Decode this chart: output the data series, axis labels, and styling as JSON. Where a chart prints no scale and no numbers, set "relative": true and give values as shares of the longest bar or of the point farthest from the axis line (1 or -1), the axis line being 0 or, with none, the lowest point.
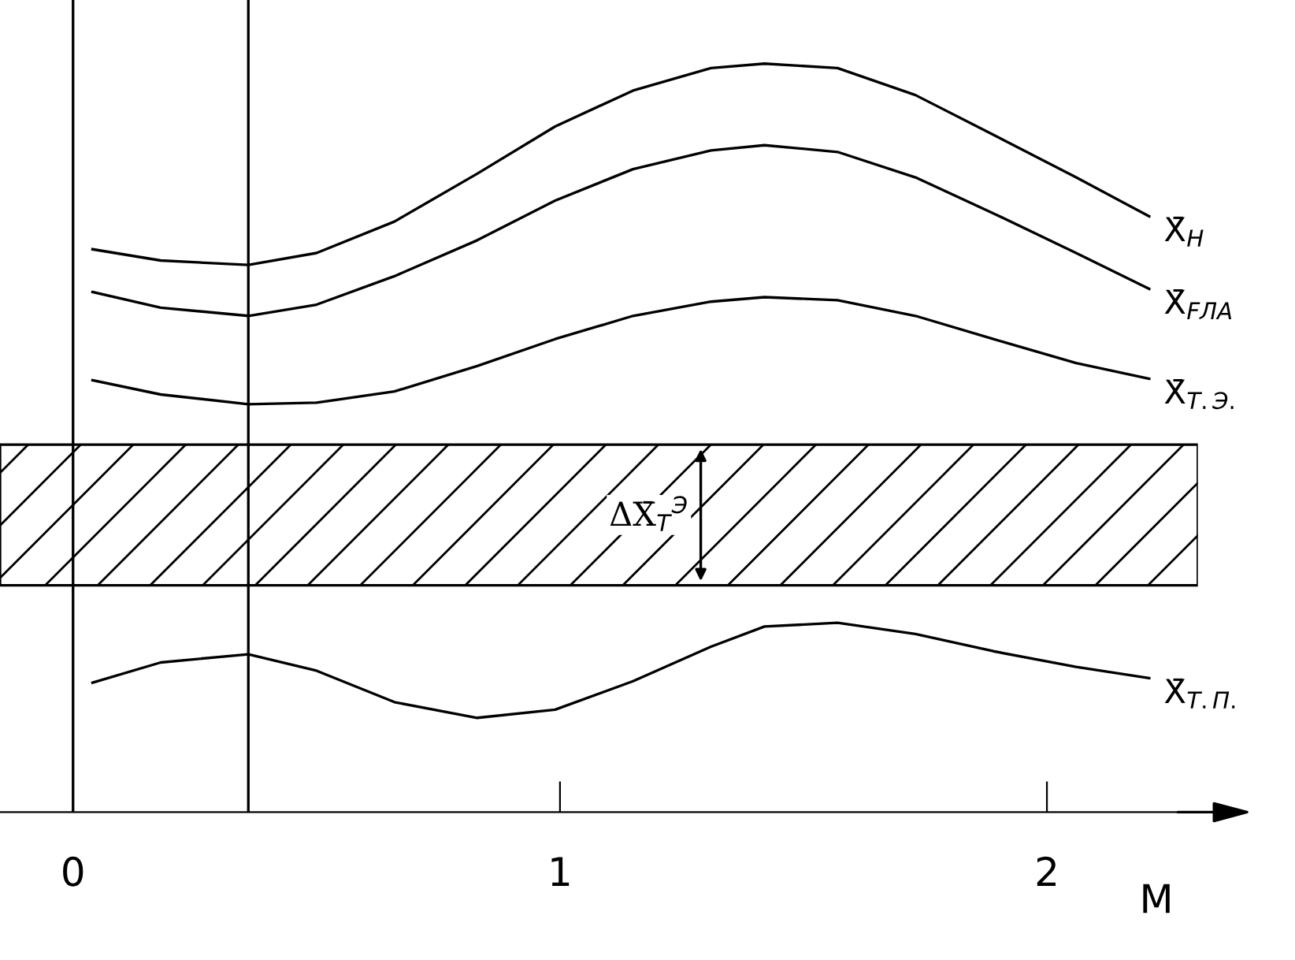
{
  "chart_data": {
    "type": "line",
    "relative": true,
    "xlabel": "M",
    "xlim": [
      -0.15,
      2.31
    ],
    "xticks": [
      0,
      1,
      2
    ],
    "grid": false,
    "legend": false,
    "marker": "none",
    "line_style": "solid",
    "x": [
      0.04,
      0.18,
      0.36,
      0.5,
      0.66,
      0.83,
      0.99,
      1.15,
      1.31,
      1.42,
      1.57,
      1.73,
      1.89,
      2.06,
      2.21
    ],
    "series": [
      {
        "name": "X̄$_{Н}$",
        "color": "#000000",
        "values": [
          0.752,
          0.737,
          0.731,
          0.747,
          0.789,
          0.853,
          0.916,
          0.964,
          0.994,
          1.0,
          0.994,
          0.958,
          0.905,
          0.848,
          0.796
        ]
      },
      {
        "name": "X̄$_{FЛА}$",
        "color": "#000000",
        "values": [
          0.695,
          0.674,
          0.663,
          0.678,
          0.716,
          0.764,
          0.817,
          0.859,
          0.884,
          0.891,
          0.882,
          0.848,
          0.8,
          0.747,
          0.699
        ]
      },
      {
        "name": "X̄$_{Т.Э.}$",
        "color": "#000000",
        "values": [
          0.577,
          0.558,
          0.545,
          0.547,
          0.562,
          0.596,
          0.632,
          0.663,
          0.682,
          0.688,
          0.684,
          0.663,
          0.632,
          0.6,
          0.579
        ]
      },
      {
        "name": "X̄$_{Т.П.}$",
        "color": "#000000",
        "values": [
          0.173,
          0.2,
          0.211,
          0.189,
          0.147,
          0.126,
          0.137,
          0.175,
          0.221,
          0.248,
          0.253,
          0.238,
          0.215,
          0.194,
          0.179
        ]
      }
    ],
    "bands": [
      {
        "axis": "y",
        "from": 0.303,
        "to": 0.491,
        "color": "#000000",
        "label": "ΔX̄$_{Т}$$^{Э}$"
      }
    ],
    "ref_lines": [
      {
        "axis": "x",
        "value": 0,
        "color": "#000000",
        "line_style": "solid"
      },
      {
        "axis": "x",
        "value": 0.36,
        "color": "#000000",
        "line_style": "solid"
      }
    ]
  }
}
